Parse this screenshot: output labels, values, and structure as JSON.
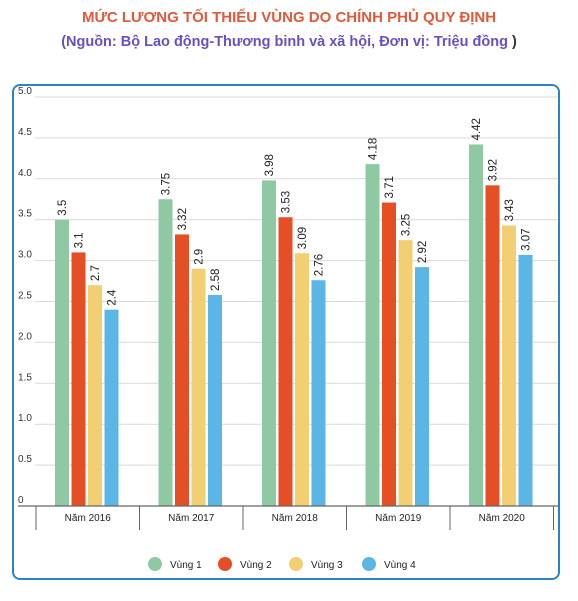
{
  "header": {
    "title": "MỨC LƯƠNG TỐI THIỂU VÙNG DO CHÍNH PHỦ QUY ĐỊNH",
    "subtitle_text": "(Nguồn: Bộ Lao động-Thương binh và xã hội, Đơn vị: Triệu đồng",
    "subtitle_close": ")"
  },
  "colors": {
    "title": "#e0593a",
    "subtitle": "#6a4fc0",
    "frame_border": "#2b84c6",
    "grid": "#d9d9d9",
    "axis": "#666666"
  },
  "chart_data": {
    "type": "bar",
    "title": "MỨC LƯƠNG TỐI THIỂU VÙNG DO CHÍNH PHỦ QUY ĐỊNH",
    "subtitle": "(Nguồn: Bộ Lao động-Thương binh và xã hội, Đơn vị: Triệu đồng )",
    "xlabel": "",
    "ylabel": "",
    "categories": [
      "Năm 2016",
      "Năm 2017",
      "Năm 2018",
      "Năm 2019",
      "Năm 2020"
    ],
    "series": [
      {
        "name": "Vùng 1",
        "color": "#8fc9a3",
        "values": [
          3.5,
          3.75,
          3.98,
          4.18,
          4.42
        ]
      },
      {
        "name": "Vùng 2",
        "color": "#e44f26",
        "values": [
          3.1,
          3.32,
          3.53,
          3.71,
          3.92
        ]
      },
      {
        "name": "Vùng 3",
        "color": "#f2cf73",
        "values": [
          2.7,
          2.9,
          3.09,
          3.25,
          3.43
        ]
      },
      {
        "name": "Vùng 4",
        "color": "#5bb5e5",
        "values": [
          2.4,
          2.58,
          2.76,
          2.92,
          3.07
        ]
      }
    ],
    "ylim": [
      0,
      5
    ],
    "yticks": [
      "0",
      "0.5",
      "1.0",
      "1.5",
      "2.0",
      "2.5",
      "3.0",
      "3.5",
      "4.0",
      "4.5",
      "5.0"
    ],
    "grid": true,
    "legend_position": "bottom"
  }
}
